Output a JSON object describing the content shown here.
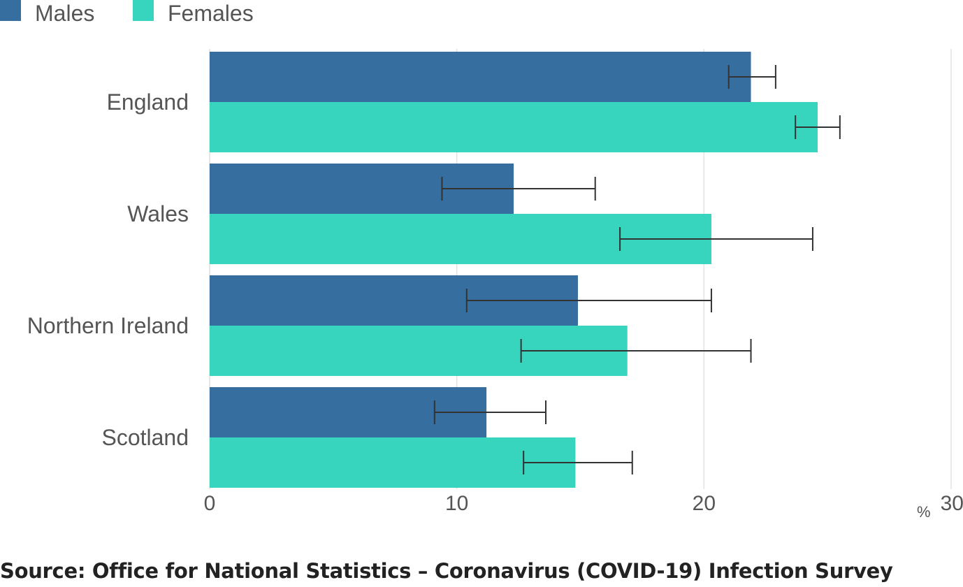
{
  "chart_data": {
    "type": "bar",
    "orientation": "horizontal",
    "categories": [
      "England",
      "Wales",
      "Northern Ireland",
      "Scotland"
    ],
    "series": [
      {
        "name": "Males",
        "color": "#356e9f",
        "values": [
          21.9,
          12.3,
          14.9,
          11.2
        ],
        "ci_lower": [
          21.0,
          9.4,
          10.4,
          9.1
        ],
        "ci_upper": [
          22.9,
          15.6,
          20.3,
          13.6
        ]
      },
      {
        "name": "Females",
        "color": "#37d4be",
        "values": [
          24.6,
          20.3,
          16.9,
          14.8
        ],
        "ci_lower": [
          23.7,
          16.6,
          12.6,
          12.7
        ],
        "ci_upper": [
          25.5,
          24.4,
          21.9,
          17.1
        ]
      }
    ],
    "xlim": [
      0,
      30
    ],
    "xticks": [
      "0",
      "10",
      "20",
      "30"
    ],
    "xunit": "%",
    "grid": true,
    "legend": "top-left"
  },
  "source": "Source: Office for National Statistics – Coronavirus (COVID-19) Infection Survey"
}
